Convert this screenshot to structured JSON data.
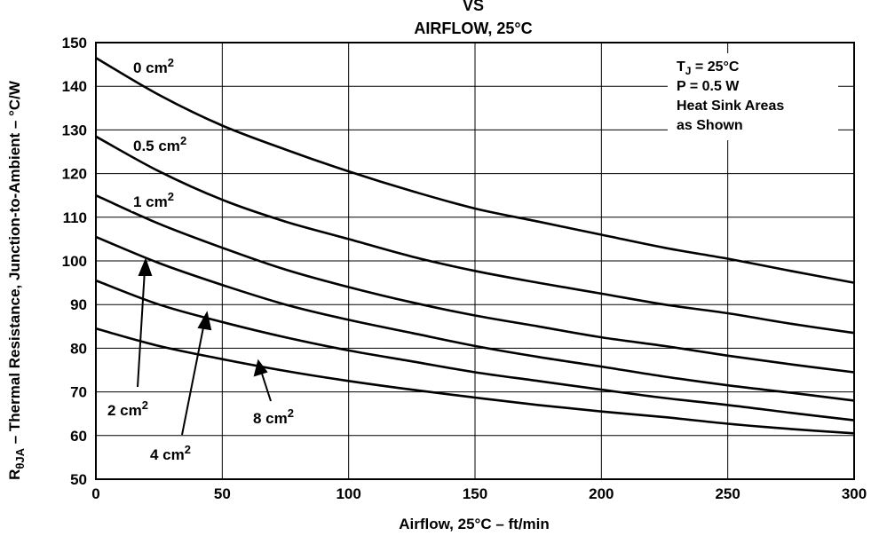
{
  "chart_data": {
    "type": "line",
    "title_lines": [
      "VS",
      "AIRFLOW, 25°C"
    ],
    "xlabel": "Airflow, 25°C – ft/min",
    "ylabel": {
      "symbol": "R",
      "subscript": "θJA",
      "rest": " – Thermal Resistance, Junction-to-Ambient – °C/W"
    },
    "xlim": [
      0,
      300
    ],
    "ylim": [
      50,
      150
    ],
    "grid": true,
    "x_ticks": [
      0,
      50,
      100,
      150,
      200,
      250,
      300
    ],
    "y_ticks": [
      50,
      60,
      70,
      80,
      90,
      100,
      110,
      120,
      130,
      140,
      150
    ],
    "x": [
      0,
      25,
      50,
      75,
      100,
      125,
      150,
      175,
      200,
      225,
      250,
      275,
      300
    ],
    "series": [
      {
        "label": "0 cm",
        "sup": "2",
        "values": [
          146.5,
          138,
          131,
          125.5,
          120.5,
          116,
          112,
          109,
          106,
          103,
          100.5,
          97.7,
          95
        ]
      },
      {
        "label": "0.5 cm",
        "sup": "2",
        "values": [
          128.5,
          120.5,
          114,
          109,
          105,
          101,
          97.7,
          95,
          92.5,
          90,
          88,
          85.6,
          83.5
        ]
      },
      {
        "label": "1 cm",
        "sup": "2",
        "values": [
          115,
          108.5,
          103,
          98,
          94,
          90.5,
          87.5,
          85,
          82.5,
          80.5,
          78.3,
          76.3,
          74.5
        ]
      },
      {
        "label": "2 cm",
        "sup": "2",
        "values": [
          105.5,
          99.5,
          94.5,
          90,
          86.5,
          83.5,
          80.5,
          78,
          75.8,
          73.5,
          71.5,
          69.8,
          68
        ]
      },
      {
        "label": "4 cm",
        "sup": "2",
        "values": [
          95.5,
          90,
          86,
          82.5,
          79.5,
          77,
          74.5,
          72.5,
          70.5,
          68.6,
          67,
          65.2,
          63.5
        ]
      },
      {
        "label": "8 cm",
        "sup": "2",
        "values": [
          84.5,
          80.5,
          77.5,
          74.8,
          72.5,
          70.5,
          68.7,
          67,
          65.5,
          64.2,
          62.7,
          61.5,
          60.5
        ]
      }
    ],
    "conditions": {
      "tj_main": "T",
      "tj_sub": "J",
      "tj_rest": " = 25°C",
      "power": "P = 0.5 W",
      "line3": "Heat Sink Areas",
      "line4": "as Shown"
    }
  }
}
